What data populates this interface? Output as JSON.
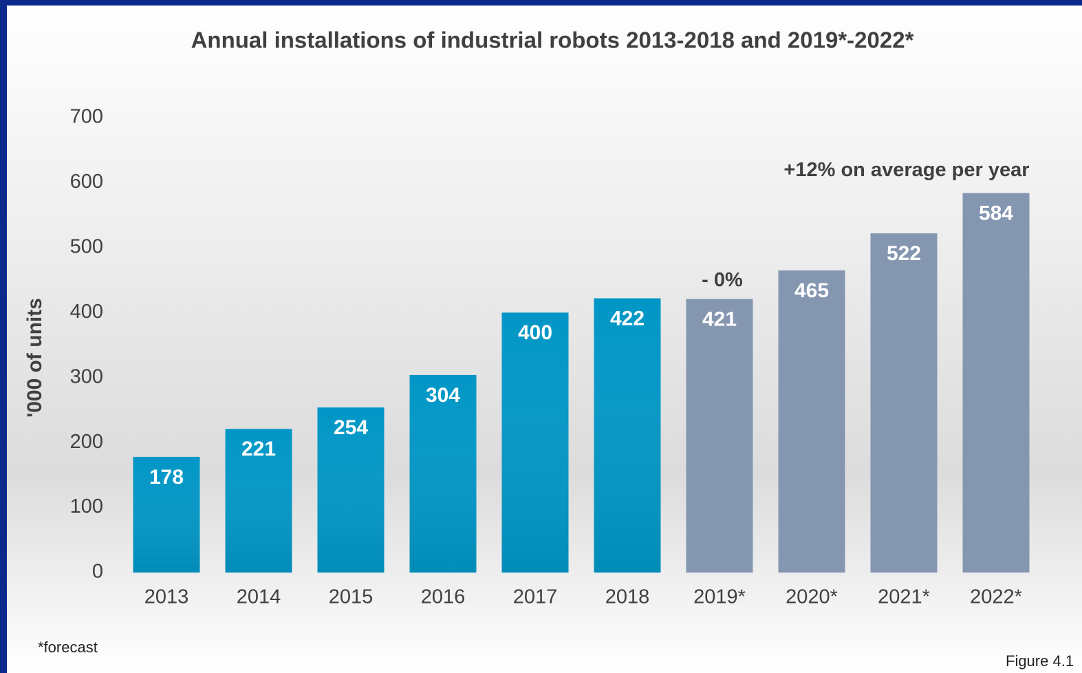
{
  "chart_data": {
    "type": "bar",
    "title": "Annual installations  of industrial robots 2013-2018 and 2019*-2022*",
    "y_label": "'000 of units",
    "categories": [
      "2013",
      "2014",
      "2015",
      "2016",
      "2017",
      "2018",
      "2019*",
      "2020*",
      "2021*",
      "2022*"
    ],
    "values": [
      178,
      221,
      254,
      304,
      400,
      422,
      421,
      465,
      522,
      584
    ],
    "colors": [
      "#0096c6",
      "#0096c6",
      "#0096c6",
      "#0096c6",
      "#0096c6",
      "#0096c6",
      "#8496b0",
      "#8496b0",
      "#8496b0",
      "#8496b0"
    ],
    "ylim": [
      0,
      700
    ],
    "yticks": [
      0,
      100,
      200,
      300,
      400,
      500,
      600,
      700
    ],
    "grid": false,
    "annotations": [
      "- 0%",
      "+12% on average per year"
    ],
    "footnote": "*forecast",
    "figure_label": "Figure 4.1"
  }
}
